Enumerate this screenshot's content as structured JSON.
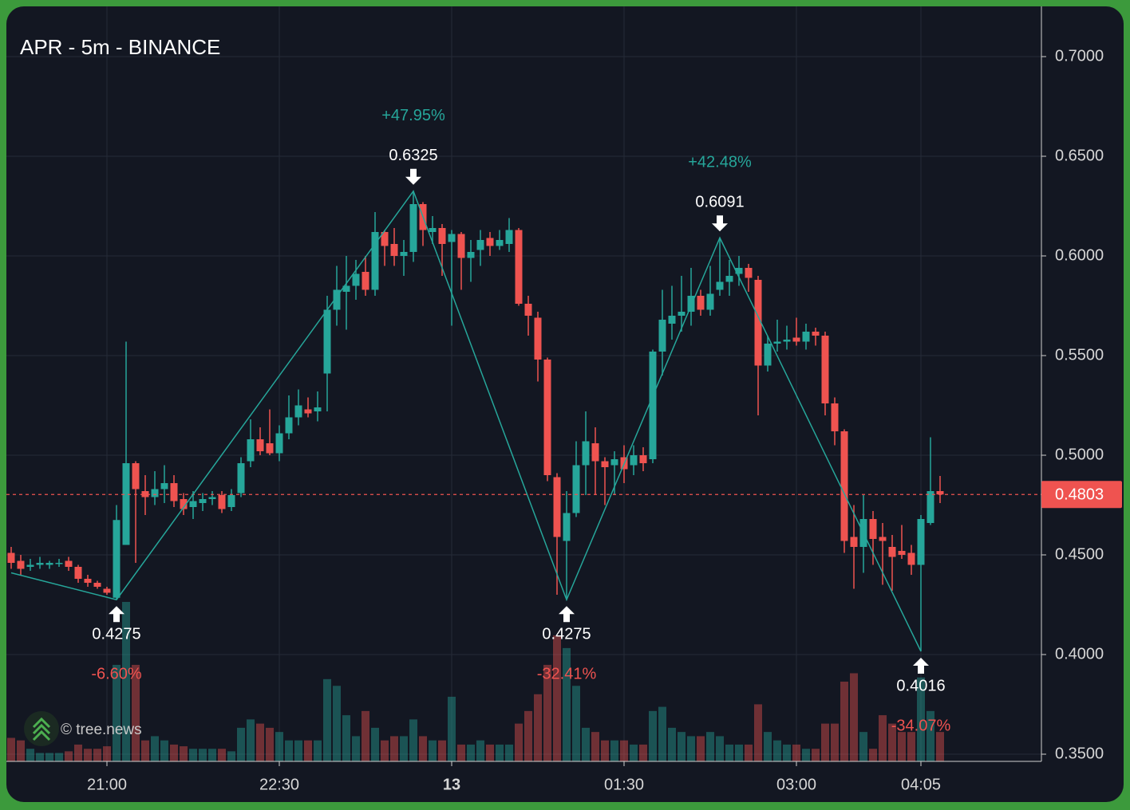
{
  "chart_data": {
    "type": "candlestick",
    "title": "APR - 5m - BINANCE",
    "watermark": "© tree.news",
    "categories": [
      "20:10",
      "20:15",
      "20:20",
      "20:25",
      "20:30",
      "20:35",
      "20:40",
      "20:45",
      "20:50",
      "20:55",
      "21:00",
      "21:05",
      "21:10",
      "21:15",
      "21:20",
      "21:25",
      "21:30",
      "21:35",
      "21:40",
      "21:45",
      "21:50",
      "21:55",
      "22:00",
      "22:05",
      "22:10",
      "22:15",
      "22:20",
      "22:25",
      "22:30",
      "22:35",
      "22:40",
      "22:45",
      "22:50",
      "22:55",
      "23:00",
      "23:05",
      "23:10",
      "23:15",
      "23:20",
      "23:25",
      "23:30",
      "23:35",
      "23:40",
      "23:45",
      "23:50",
      "23:55",
      "00:00",
      "00:05",
      "00:10",
      "00:15",
      "00:20",
      "00:25",
      "00:30",
      "00:35",
      "00:40",
      "00:45",
      "00:50",
      "00:55",
      "01:00",
      "01:05",
      "01:10",
      "01:15",
      "01:20",
      "01:25",
      "01:30",
      "01:35",
      "01:40",
      "01:45",
      "01:50",
      "01:55",
      "02:00",
      "02:05",
      "02:10",
      "02:15",
      "02:20",
      "02:25",
      "02:30",
      "02:35",
      "02:40",
      "02:45",
      "02:50",
      "02:55",
      "03:00",
      "03:05",
      "03:10",
      "03:15",
      "03:20",
      "03:25",
      "03:30",
      "03:35",
      "03:40",
      "03:45",
      "03:50",
      "03:55",
      "04:00",
      "04:05",
      "04:10",
      "04:15"
    ],
    "open": [
      0.451,
      0.447,
      0.444,
      0.445,
      0.445,
      0.446,
      0.447,
      0.444,
      0.438,
      0.436,
      0.433,
      0.4285,
      0.455,
      0.496,
      0.482,
      0.479,
      0.483,
      0.486,
      0.478,
      0.474,
      0.476,
      0.478,
      0.48,
      0.474,
      0.481,
      0.497,
      0.508,
      0.506,
      0.501,
      0.511,
      0.519,
      0.523,
      0.522,
      0.541,
      0.573,
      0.582,
      0.585,
      0.592,
      0.583,
      0.612,
      0.606,
      0.6,
      0.602,
      0.626,
      0.612,
      0.614,
      0.607,
      0.611,
      0.599,
      0.603,
      0.609,
      0.605,
      0.606,
      0.613,
      0.576,
      0.569,
      0.548,
      0.489,
      0.457,
      0.471,
      0.495,
      0.506,
      0.497,
      0.495,
      0.499,
      0.495,
      0.5,
      0.498,
      0.552,
      0.566,
      0.57,
      0.572,
      0.58,
      0.573,
      0.583,
      0.587,
      0.591,
      0.594,
      0.588,
      0.545,
      0.556,
      0.557,
      0.559,
      0.557,
      0.562,
      0.56,
      0.526,
      0.512,
      0.459,
      0.454,
      0.468,
      0.459,
      0.454,
      0.452,
      0.451,
      0.445,
      0.466,
      0.482
    ],
    "high": [
      0.454,
      0.45,
      0.448,
      0.449,
      0.447,
      0.448,
      0.449,
      0.445,
      0.44,
      0.437,
      0.434,
      0.475,
      0.557,
      0.497,
      0.49,
      0.492,
      0.495,
      0.49,
      0.481,
      0.482,
      0.481,
      0.482,
      0.482,
      0.483,
      0.499,
      0.518,
      0.514,
      0.523,
      0.515,
      0.53,
      0.533,
      0.529,
      0.532,
      0.58,
      0.595,
      0.6,
      0.598,
      0.6,
      0.622,
      0.613,
      0.614,
      0.608,
      0.6325,
      0.627,
      0.62,
      0.616,
      0.613,
      0.612,
      0.608,
      0.613,
      0.612,
      0.613,
      0.619,
      0.614,
      0.58,
      0.572,
      0.549,
      0.491,
      0.482,
      0.507,
      0.522,
      0.514,
      0.499,
      0.502,
      0.505,
      0.505,
      0.504,
      0.553,
      0.583,
      0.585,
      0.59,
      0.594,
      0.583,
      0.595,
      0.6091,
      0.598,
      0.6,
      0.596,
      0.59,
      0.56,
      0.568,
      0.565,
      0.569,
      0.566,
      0.564,
      0.562,
      0.529,
      0.513,
      0.475,
      0.48,
      0.472,
      0.466,
      0.46,
      0.465,
      0.455,
      0.47,
      0.509,
      0.4896
    ],
    "low": [
      0.443,
      0.44,
      0.442,
      0.443,
      0.443,
      0.444,
      0.442,
      0.436,
      0.434,
      0.433,
      0.43,
      0.4275,
      0.455,
      0.446,
      0.47,
      0.475,
      0.476,
      0.474,
      0.47,
      0.468,
      0.472,
      0.475,
      0.471,
      0.472,
      0.479,
      0.494,
      0.5,
      0.5,
      0.497,
      0.508,
      0.515,
      0.519,
      0.517,
      0.522,
      0.565,
      0.563,
      0.578,
      0.58,
      0.58,
      0.595,
      0.595,
      0.59,
      0.597,
      0.605,
      0.606,
      0.59,
      0.565,
      0.583,
      0.587,
      0.595,
      0.6,
      0.603,
      0.602,
      0.575,
      0.56,
      0.537,
      0.487,
      0.43,
      0.4275,
      0.469,
      0.48,
      0.48,
      0.475,
      0.48,
      0.486,
      0.49,
      0.492,
      0.496,
      0.54,
      0.558,
      0.562,
      0.565,
      0.57,
      0.57,
      0.58,
      0.58,
      0.585,
      0.582,
      0.52,
      0.542,
      0.552,
      0.553,
      0.555,
      0.553,
      0.555,
      0.52,
      0.505,
      0.451,
      0.433,
      0.441,
      0.445,
      0.435,
      0.432,
      0.448,
      0.44,
      0.4016,
      0.465,
      0.476
    ],
    "close": [
      0.446,
      0.443,
      0.445,
      0.446,
      0.446,
      0.446,
      0.444,
      0.438,
      0.436,
      0.434,
      0.431,
      0.4675,
      0.496,
      0.483,
      0.479,
      0.483,
      0.486,
      0.477,
      0.473,
      0.477,
      0.478,
      0.479,
      0.473,
      0.48,
      0.496,
      0.508,
      0.502,
      0.501,
      0.511,
      0.519,
      0.525,
      0.521,
      0.524,
      0.573,
      0.583,
      0.585,
      0.591,
      0.583,
      0.612,
      0.605,
      0.6,
      0.602,
      0.626,
      0.613,
      0.614,
      0.606,
      0.611,
      0.599,
      0.602,
      0.608,
      0.605,
      0.608,
      0.613,
      0.576,
      0.57,
      0.548,
      0.49,
      0.459,
      0.471,
      0.495,
      0.507,
      0.497,
      0.494,
      0.498,
      0.493,
      0.5,
      0.496,
      0.552,
      0.568,
      0.57,
      0.572,
      0.58,
      0.573,
      0.581,
      0.587,
      0.59,
      0.594,
      0.589,
      0.545,
      0.556,
      0.557,
      0.558,
      0.557,
      0.562,
      0.56,
      0.526,
      0.512,
      0.457,
      0.454,
      0.468,
      0.458,
      0.457,
      0.449,
      0.45,
      0.445,
      0.468,
      0.482,
      0.4803
    ],
    "volume": [
      28,
      25,
      15,
      10,
      10,
      10,
      12,
      20,
      15,
      15,
      18,
      115,
      190,
      115,
      25,
      30,
      25,
      20,
      18,
      15,
      15,
      15,
      15,
      12,
      40,
      50,
      45,
      40,
      35,
      25,
      25,
      25,
      25,
      98,
      90,
      55,
      30,
      60,
      40,
      25,
      30,
      30,
      50,
      30,
      25,
      25,
      77,
      20,
      20,
      25,
      20,
      20,
      20,
      45,
      60,
      80,
      115,
      150,
      135,
      90,
      40,
      35,
      25,
      25,
      25,
      20,
      20,
      60,
      65,
      40,
      35,
      30,
      30,
      35,
      30,
      20,
      20,
      20,
      68,
      35,
      25,
      20,
      20,
      15,
      15,
      45,
      45,
      95,
      105,
      35,
      15,
      55,
      45,
      35,
      35,
      100,
      60,
      35
    ],
    "up_color": "#26a69a",
    "down_color": "#ef5350",
    "ylim": [
      0.3464,
      0.7252
    ],
    "yticks": [
      {
        "value": 0.35,
        "label": "0.3500"
      },
      {
        "value": 0.4,
        "label": "0.4000"
      },
      {
        "value": 0.45,
        "label": "0.4500"
      },
      {
        "value": 0.5,
        "label": "0.5000"
      },
      {
        "value": 0.55,
        "label": "0.5500"
      },
      {
        "value": 0.6,
        "label": "0.6000"
      },
      {
        "value": 0.65,
        "label": "0.6500"
      },
      {
        "value": 0.7,
        "label": "0.7000"
      }
    ],
    "xticks": [
      {
        "value": "21:00",
        "label": "21:00"
      },
      {
        "value": "22:30",
        "label": "22:30"
      },
      {
        "value": "00:00",
        "label": "13"
      },
      {
        "value": "01:30",
        "label": "01:30"
      },
      {
        "value": "03:00",
        "label": "03:00"
      },
      {
        "value": "04:05",
        "label": "04:05"
      }
    ],
    "grid": true,
    "last_price": {
      "value": 0.4803,
      "label": "0.4803"
    },
    "zigzag_color": "#26a69a",
    "zigzag_start": {
      "time": "20:10",
      "value": 0.441
    },
    "pivots": [
      {
        "time": "21:05",
        "value": 0.4275,
        "change": -6.6,
        "change_label": "-6.60%"
      },
      {
        "time": "23:40",
        "value": 0.6325,
        "change": 47.95,
        "change_label": "+47.95%"
      },
      {
        "time": "01:00",
        "value": 0.4275,
        "change": -32.41,
        "change_label": "-32.41%"
      },
      {
        "time": "02:20",
        "value": 0.6091,
        "change": 42.48,
        "change_label": "+42.48%"
      },
      {
        "time": "04:05",
        "value": 0.4016,
        "change": -34.07,
        "change_label": "-34.07%"
      }
    ]
  }
}
